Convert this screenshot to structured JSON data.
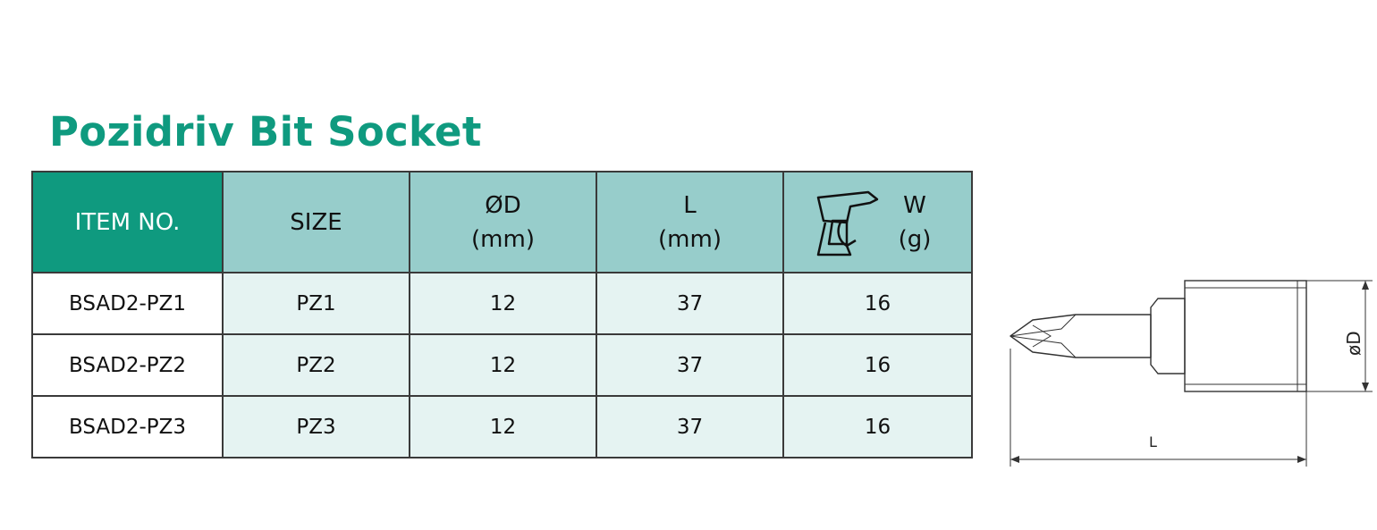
{
  "title": "Pozidriv Bit Socket",
  "table": {
    "headers": [
      {
        "line1": "ITEM NO.",
        "line2": ""
      },
      {
        "line1": "SIZE",
        "line2": ""
      },
      {
        "line1": "ØD",
        "line2": "(mm)"
      },
      {
        "line1": "L",
        "line2": "(mm)"
      },
      {
        "line1": "W",
        "line2": "(g)"
      }
    ],
    "rows": [
      {
        "item": "BSAD2-PZ1",
        "size": "PZ1",
        "d": "12",
        "l": "37",
        "w": "16"
      },
      {
        "item": "BSAD2-PZ2",
        "size": "PZ2",
        "d": "12",
        "l": "37",
        "w": "16"
      },
      {
        "item": "BSAD2-PZ3",
        "size": "PZ3",
        "d": "12",
        "l": "37",
        "w": "16"
      }
    ]
  },
  "drawing": {
    "d_label": "øD",
    "l_label": "L"
  },
  "colors": {
    "title": "#0f9a7f",
    "header_dark": "#0f9a7f",
    "header_light": "#97cdcb",
    "row_light": "#e5f3f2"
  },
  "icons": [
    "scale-weight-icon"
  ]
}
